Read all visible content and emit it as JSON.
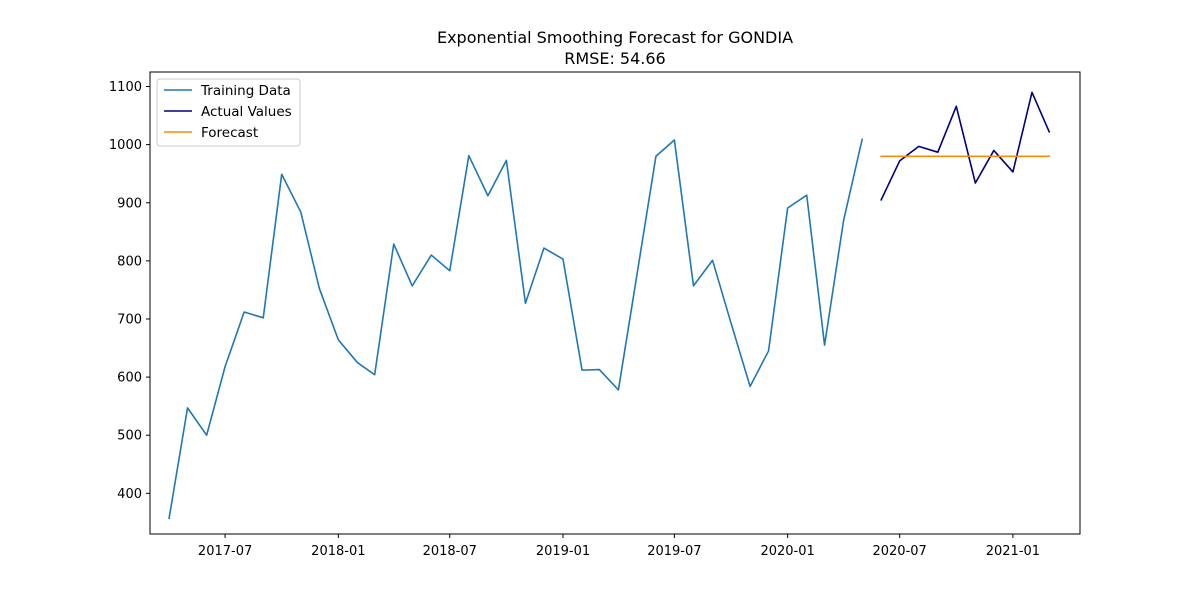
{
  "chart_data": {
    "type": "line",
    "title": "Exponential Smoothing Forecast for GONDIA",
    "subtitle": "RMSE: 54.66",
    "xlabel": "",
    "ylabel": "",
    "ylim": [
      330,
      1125
    ],
    "xlim": [
      "2017-03-01",
      "2021-04-20"
    ],
    "y_ticks": [
      400,
      500,
      600,
      700,
      800,
      900,
      1000,
      1100
    ],
    "x_ticks": [
      "2017-07",
      "2018-01",
      "2018-07",
      "2019-01",
      "2019-07",
      "2020-01",
      "2020-07",
      "2021-01"
    ],
    "grid": false,
    "legend_position": "top-left",
    "series": [
      {
        "name": "Training Data",
        "color": "#1f77b4",
        "x": [
          "2017-04",
          "2017-05",
          "2017-06",
          "2017-07",
          "2017-08",
          "2017-09",
          "2017-10",
          "2017-11",
          "2017-12",
          "2018-01",
          "2018-02",
          "2018-03",
          "2018-04",
          "2018-05",
          "2018-06",
          "2018-07",
          "2018-08",
          "2018-09",
          "2018-10",
          "2018-11",
          "2018-12",
          "2019-01",
          "2019-02",
          "2019-03",
          "2019-04",
          "2019-05",
          "2019-06",
          "2019-07",
          "2019-08",
          "2019-09",
          "2019-10",
          "2019-11",
          "2019-12",
          "2020-01",
          "2020-02",
          "2020-03",
          "2020-04",
          "2020-05"
        ],
        "values": [
          357,
          547,
          500,
          618,
          712,
          702,
          949,
          884,
          753,
          664,
          625,
          604,
          829,
          757,
          810,
          783,
          981,
          912,
          973,
          727,
          822,
          803,
          612,
          613,
          578,
          775,
          980,
          1008,
          757,
          801,
          693,
          584,
          645,
          891,
          913,
          655,
          870,
          1009
        ]
      },
      {
        "name": "Actual Values",
        "color": "#000080",
        "x": [
          "2020-06",
          "2020-07",
          "2020-08",
          "2020-09",
          "2020-10",
          "2020-11",
          "2020-12",
          "2021-01",
          "2021-02",
          "2021-03"
        ],
        "values": [
          905,
          972,
          997,
          987,
          1066,
          934,
          990,
          953,
          1090,
          1022
        ]
      },
      {
        "name": "Forecast",
        "color": "#ff8c00",
        "x": [
          "2020-06",
          "2020-07",
          "2020-08",
          "2020-09",
          "2020-10",
          "2020-11",
          "2020-12",
          "2021-01",
          "2021-02",
          "2021-03"
        ],
        "values": [
          980,
          980,
          980,
          980,
          980,
          980,
          980,
          980,
          980,
          980
        ]
      }
    ]
  }
}
